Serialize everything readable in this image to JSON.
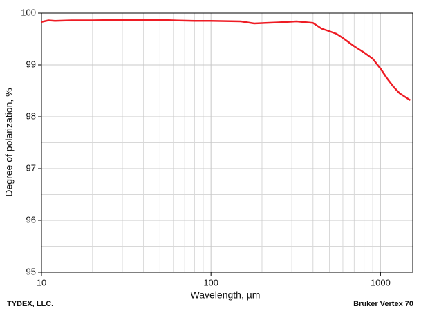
{
  "chart_data": {
    "type": "line",
    "x_label": "Wavelength, µm",
    "y_label": "Degree of polarization, %",
    "annotations": [
      "TYDEX, LLC.",
      "Bruker Vertex 70"
    ],
    "x_log": true,
    "grid": true,
    "series": [
      {
        "color": "#ee1c24",
        "x": [
          10,
          11,
          12,
          15,
          20,
          30,
          40,
          50,
          60,
          80,
          100,
          150,
          180,
          250,
          320,
          400,
          450,
          500,
          550,
          600,
          700,
          800,
          900,
          1000,
          1100,
          1200,
          1300,
          1500
        ],
        "values": [
          99.83,
          99.86,
          99.85,
          99.86,
          99.86,
          99.87,
          99.87,
          99.87,
          99.86,
          99.85,
          99.85,
          99.84,
          99.8,
          99.82,
          99.84,
          99.81,
          99.7,
          99.65,
          99.6,
          99.52,
          99.36,
          99.24,
          99.12,
          98.93,
          98.73,
          98.57,
          98.45,
          98.32
        ]
      }
    ],
    "xlim": [
      10,
      1550
    ],
    "ylim": [
      95,
      100
    ],
    "xticks": [
      10,
      100,
      1000
    ],
    "yticks": [
      95,
      96,
      97,
      98,
      99,
      100
    ],
    "x_minor_ticks": [
      20,
      30,
      40,
      50,
      60,
      70,
      80,
      90,
      200,
      300,
      400,
      500,
      600,
      700,
      800,
      900
    ],
    "y_minor_ticks": [
      95.5,
      96.5,
      97.5,
      98.5,
      99.5
    ]
  }
}
